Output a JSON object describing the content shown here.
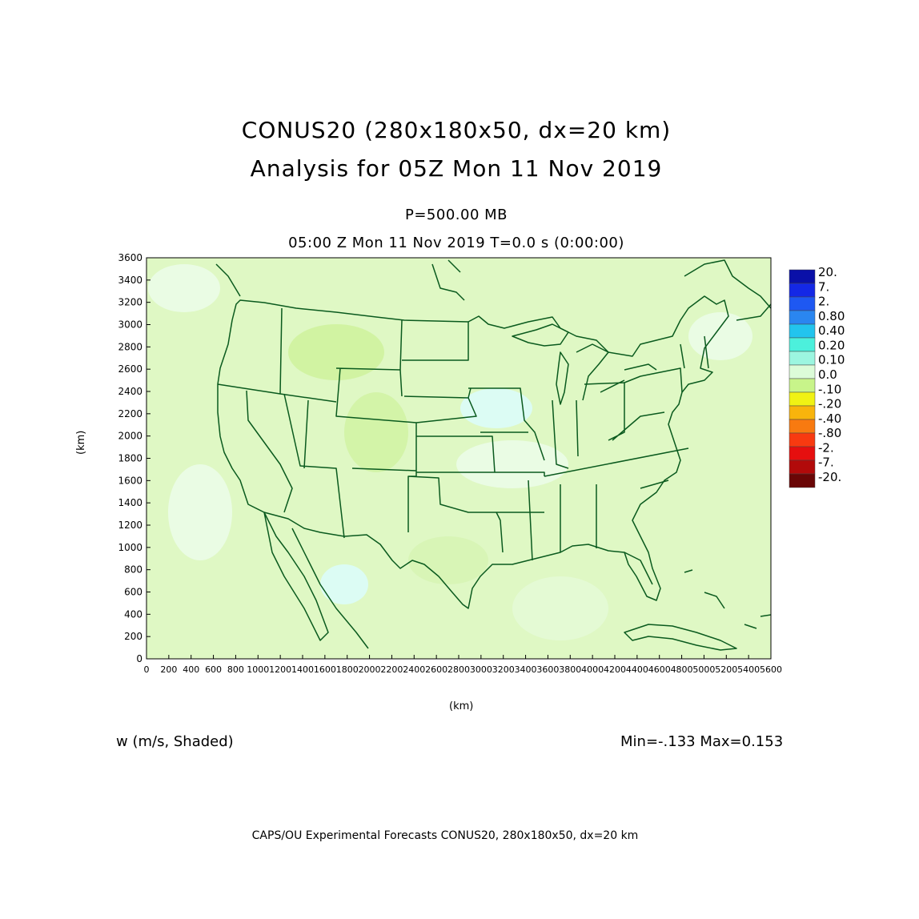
{
  "title": {
    "line1": "CONUS20 (280x180x50, dx=20 km)",
    "line2": "Analysis for 05Z Mon 11 Nov 2019"
  },
  "level_label": "P=500.00 MB",
  "time_label": "05:00 Z Mon 11 Nov 2019    T=0.0 s (0:00:00)",
  "axes": {
    "x_unit": "(km)",
    "y_unit": "(km)",
    "x_ticks": [
      "0",
      "200",
      "400",
      "600",
      "800",
      "1000",
      "1200",
      "1400",
      "1600",
      "1800",
      "2000",
      "2200",
      "2400",
      "2600",
      "2800",
      "3000",
      "3200",
      "3400",
      "3600",
      "3800",
      "4000",
      "4200",
      "4400",
      "4600",
      "4800",
      "5000",
      "5200",
      "5400",
      "5600"
    ],
    "y_ticks": [
      "0",
      "200",
      "400",
      "600",
      "800",
      "1000",
      "1200",
      "1400",
      "1600",
      "1800",
      "2000",
      "2200",
      "2400",
      "2600",
      "2800",
      "3000",
      "3200",
      "3400",
      "3600"
    ],
    "x_range": [
      0,
      5600
    ],
    "y_range": [
      0,
      3600
    ]
  },
  "legend": {
    "labels": [
      "20.",
      "7.",
      "2.",
      "0.80",
      "0.40",
      "0.20",
      "0.10",
      "0.0",
      "-.10",
      "-.20",
      "-.40",
      "-.80",
      "-2.",
      "-7.",
      "-20."
    ],
    "colors": [
      "#0a10a8",
      "#1428e6",
      "#1e58f2",
      "#2a86f0",
      "#22c4ee",
      "#4cf0dc",
      "#9cf6e0",
      "#dcfcd8",
      "#c8f48a",
      "#f0f214",
      "#f8b40c",
      "#f87a10",
      "#f83a10",
      "#e60f0f",
      "#b20a0a",
      "#6a0606"
    ]
  },
  "field_label": "w (m/s, Shaded)",
  "min_max": "Min=-.133 Max=0.153",
  "footer": "CAPS/OU Experimental Forecasts  CONUS20, 280x180x50, dx=20 km",
  "colors": {
    "field_base": "#dff8c4",
    "field_light": "#eefce6",
    "field_negative": "#c8f08c",
    "boundary": "#0a5a1e"
  }
}
